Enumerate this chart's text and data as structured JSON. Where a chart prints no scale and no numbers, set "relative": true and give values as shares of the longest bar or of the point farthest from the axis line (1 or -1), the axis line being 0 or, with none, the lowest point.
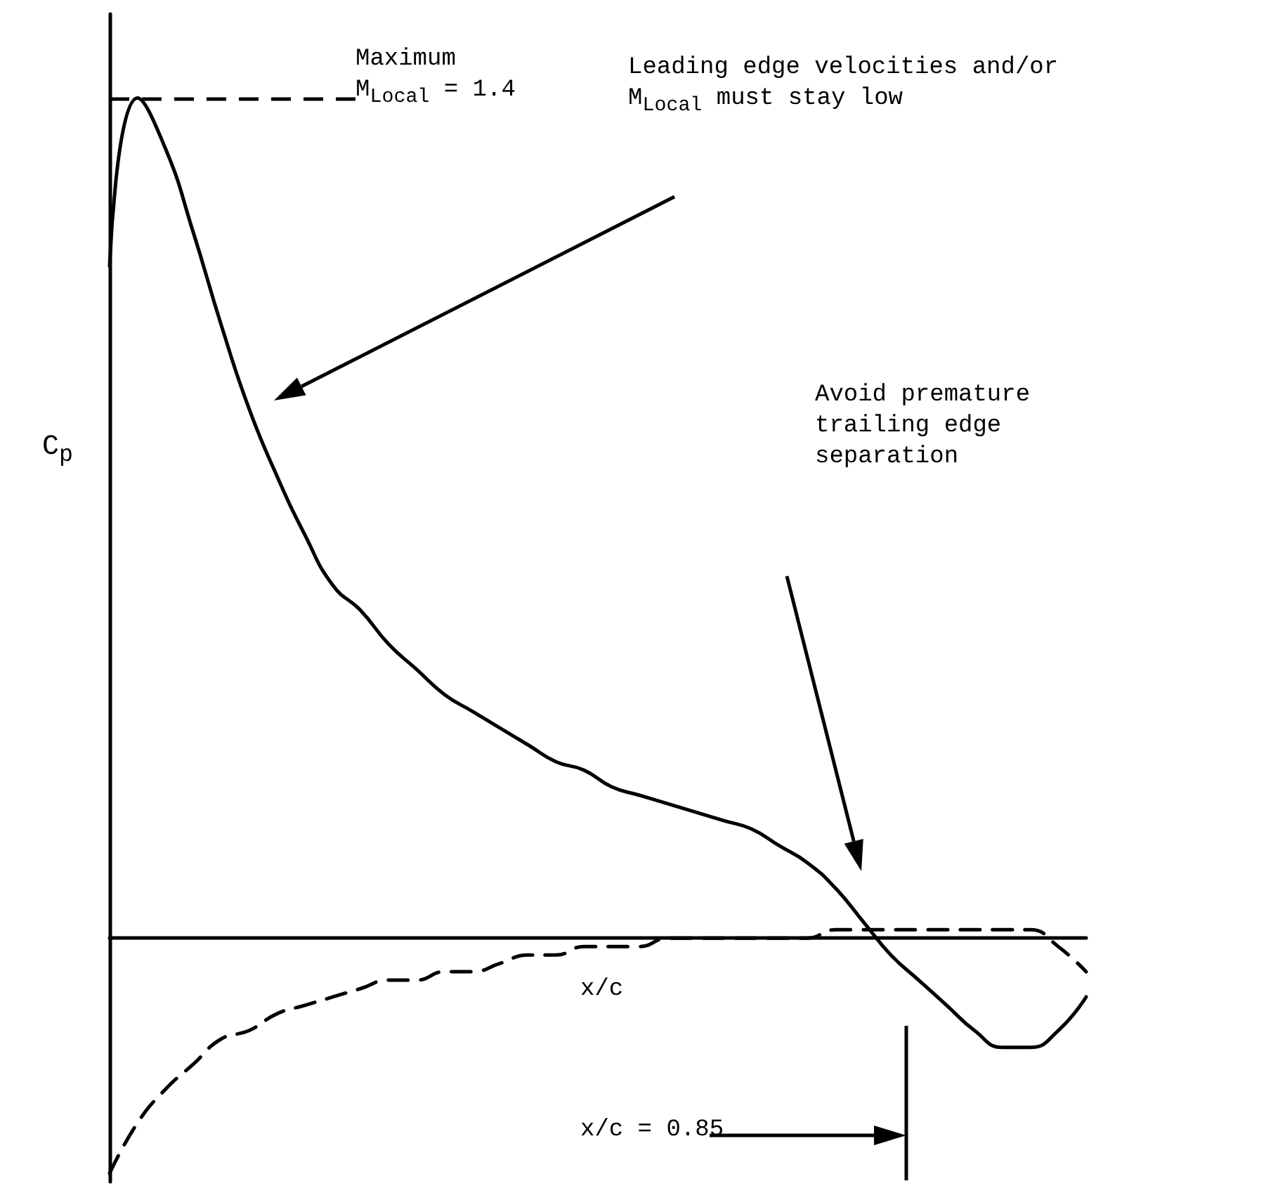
{
  "chart_data": {
    "type": "line",
    "relative": true,
    "ylabel": "C$_{p}$",
    "xlabel": "x/c",
    "marker": "none",
    "categories": [
      null,
      null,
      null,
      null,
      null,
      null,
      null,
      null,
      null,
      null,
      null,
      null,
      null,
      null,
      null,
      null,
      null,
      null,
      null,
      null,
      null,
      null,
      null,
      null,
      null,
      null,
      null,
      null,
      null,
      null,
      null,
      null,
      null,
      null,
      null,
      null
    ],
    "series": [
      {
        "color": "#000000",
        "line_style": "solid",
        "values": [
          0.8,
          1.0,
          0.94,
          0.84,
          0.73,
          0.63,
          0.55,
          0.48,
          0.42,
          0.39,
          0.35,
          0.32,
          0.29,
          0.27,
          0.25,
          0.23,
          0.21,
          0.2,
          0.18,
          0.17,
          0.16,
          0.15,
          0.14,
          0.13,
          0.11,
          0.09,
          0.06,
          0.02,
          -0.02,
          -0.05,
          -0.08,
          -0.11,
          -0.13,
          -0.13,
          -0.11,
          -0.07
        ]
      },
      {
        "color": "#000000",
        "line_style": "dashed",
        "values": [
          -0.28,
          -0.22,
          -0.18,
          -0.15,
          -0.12,
          -0.11,
          -0.09,
          -0.08,
          -0.07,
          -0.06,
          -0.05,
          -0.05,
          -0.04,
          -0.04,
          -0.03,
          -0.02,
          -0.02,
          -0.01,
          -0.01,
          -0.01,
          0.0,
          0.0,
          0.0,
          0.0,
          0.0,
          0.0,
          0.01,
          0.01,
          0.01,
          0.01,
          0.01,
          0.01,
          0.01,
          0.01,
          -0.01,
          -0.04
        ]
      }
    ],
    "ref_lines": [
      {
        "axis": "y",
        "value": 1,
        "line_style": "dashed",
        "color": "#000000"
      }
    ],
    "annotations": [
      "Maximum\nM$_{Local}$ = 1.4",
      "Leading edge velocities and/or\nM$_{Local}$ must stay low",
      "Avoid premature\ntrailing edge\nseparation",
      "x/c = 0.85"
    ]
  }
}
